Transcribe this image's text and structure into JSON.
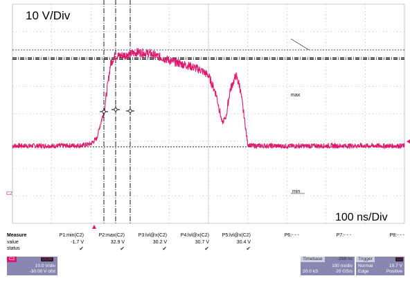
{
  "display": {
    "vertical_scale_label": "10 V/Div",
    "horizontal_scale_label": "100 ns/Div",
    "max_marker": "max",
    "min_marker": "min",
    "channel_marker": "C2"
  },
  "colors": {
    "trace": "#e0196f",
    "grid": "#9a9a9a",
    "panel": "#8a86b2"
  },
  "chart_data": {
    "type": "line",
    "title": "",
    "xlabel": "",
    "ylabel": "",
    "time_per_div_ns": 100,
    "volts_per_div": 10,
    "x_divisions": 10,
    "y_divisions": 8,
    "series": [
      {
        "name": "C2",
        "x_ns": [
          0,
          120,
          180,
          200,
          215,
          235,
          250,
          260,
          290,
          320,
          350,
          380,
          410,
          450,
          480,
          500,
          520,
          535,
          545,
          555,
          570,
          580,
          590,
          600,
          608,
          620,
          640,
          700,
          800,
          900,
          1000
        ],
        "y_v": [
          -1.7,
          -1.7,
          -1.5,
          -1.0,
          1.0,
          12.0,
          28.0,
          31.0,
          31.5,
          32.5,
          32.0,
          30.5,
          29.0,
          27.5,
          26.0,
          24.0,
          17.0,
          6.5,
          9.0,
          18.5,
          24.0,
          20.0,
          10.0,
          -1.0,
          -1.6,
          -1.7,
          -1.7,
          -1.8,
          -1.7,
          -1.7,
          -1.7
        ]
      }
    ],
    "reference_levels_v": {
      "max": 33.3,
      "min": -2.1
    },
    "cursor_levels_v": [
      29.9,
      30.4
    ]
  },
  "measure": {
    "header": "Measure",
    "row_labels": [
      "value",
      "status"
    ],
    "params": [
      {
        "name": "P1:min(C2)",
        "value": "-1.7 V",
        "ok": true
      },
      {
        "name": "P2:max(C2)",
        "value": "32.9 V",
        "ok": true
      },
      {
        "name": "P3:lvl@x(C2)",
        "value": "30.2 V",
        "ok": true
      },
      {
        "name": "P4:lvl@x(C2)",
        "value": "30.7 V",
        "ok": true
      },
      {
        "name": "P5:lvl@x(C2)",
        "value": "30.4 V",
        "ok": true
      },
      {
        "name": "P6:- - -",
        "value": "",
        "ok": false
      },
      {
        "name": "P7:- - -",
        "value": "",
        "ok": false
      },
      {
        "name": "P8:- - -",
        "value": "",
        "ok": false
      }
    ]
  },
  "channel_panel": {
    "tag": "C2",
    "badge": "DC50",
    "scale": "10.0 V/div",
    "offset": "-30.00 V ofst"
  },
  "timebase_panel": {
    "title": "Timebase",
    "delay": "-298 ns",
    "scale": "100 ns/div",
    "samples": "20.0 kS",
    "rate": "20 GS/s"
  },
  "trigger_panel": {
    "title": "Trigger",
    "source": "C2",
    "mode": "Normal",
    "level": "19.7 V",
    "type": "Edge",
    "slope": "Positive"
  }
}
